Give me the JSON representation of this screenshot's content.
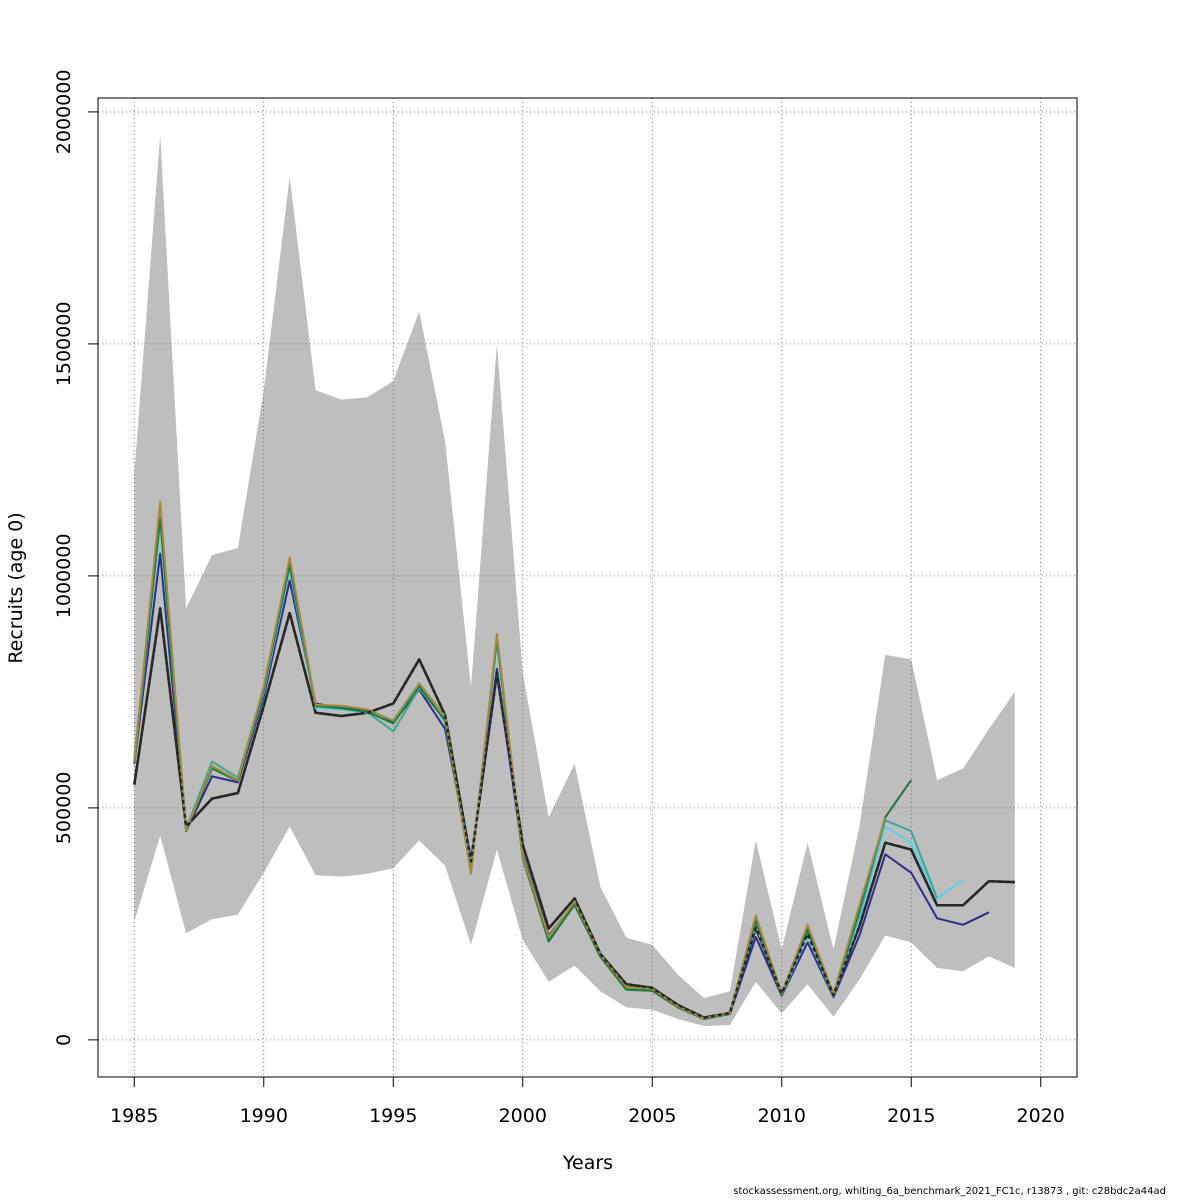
{
  "chart_data": {
    "type": "line",
    "title": "",
    "xlabel": "Years",
    "ylabel": "Recruits (age 0)",
    "xlim": [
      1983.6,
      2021.4
    ],
    "ylim": [
      -80000,
      2030000
    ],
    "x_ticks": [
      1985,
      1990,
      1995,
      2000,
      2005,
      2010,
      2015,
      2020
    ],
    "x_tick_labels": [
      "1985",
      "1990",
      "1995",
      "2000",
      "2005",
      "2010",
      "2015",
      "2020"
    ],
    "y_ticks": [
      0,
      500000,
      1000000,
      1500000,
      2000000
    ],
    "y_tick_labels": [
      "0",
      "500000",
      "1000000",
      "1500000",
      "2000000"
    ],
    "grid": true,
    "confidence_band": {
      "x": [
        1985,
        1986,
        1987,
        1988,
        1989,
        1990,
        1991,
        1992,
        1993,
        1994,
        1995,
        1996,
        1997,
        1998,
        1999,
        2000,
        2001,
        2002,
        2003,
        2004,
        2005,
        2006,
        2007,
        2008,
        2009,
        2010,
        2011,
        2012,
        2013,
        2014,
        2015,
        2016,
        2017,
        2018,
        2019
      ],
      "upper": [
        1220000,
        1950000,
        930000,
        1045000,
        1060000,
        1400000,
        1860000,
        1400000,
        1380000,
        1385000,
        1420000,
        1570000,
        1290000,
        760000,
        1500000,
        790000,
        480000,
        595000,
        330000,
        220000,
        205000,
        140000,
        90000,
        105000,
        430000,
        195000,
        425000,
        195000,
        460000,
        830000,
        820000,
        560000,
        585000,
        670000,
        750000
      ],
      "lower": [
        255000,
        440000,
        230000,
        260000,
        270000,
        360000,
        460000,
        355000,
        352000,
        358000,
        370000,
        430000,
        375000,
        205000,
        410000,
        215000,
        125000,
        160000,
        105000,
        70000,
        65000,
        45000,
        30000,
        32000,
        125000,
        57000,
        120000,
        50000,
        130000,
        225000,
        210000,
        155000,
        148000,
        180000,
        155000
      ]
    },
    "series": [
      {
        "color": "#262626",
        "dashed": true,
        "x": [
          1985,
          1986,
          1987,
          1988,
          1989,
          1990,
          1991,
          1992,
          1993,
          1994,
          1995,
          1996,
          1997,
          1998,
          1999,
          2000,
          2001,
          2002,
          2003,
          2004,
          2005,
          2006,
          2007,
          2008,
          2009,
          2010,
          2011,
          2012,
          2013,
          2014,
          2015,
          2016,
          2017,
          2018,
          2019
        ],
        "values": [
          550000,
          930000,
          460000,
          520000,
          532000,
          720000,
          920000,
          705000,
          698000,
          705000,
          725000,
          820000,
          700000,
          385000,
          790000,
          420000,
          240000,
          305000,
          185000,
          120000,
          112000,
          75000,
          48000,
          58000,
          242000,
          100000,
          228000,
          96000,
          245000,
          425000,
          410000,
          290000,
          290000,
          342000,
          340000
        ]
      },
      {
        "color": "#2c2c8c",
        "dashed": false,
        "x": [
          1985,
          1986,
          1987,
          1988,
          1989,
          1990,
          1991,
          1992,
          1993,
          1994,
          1995,
          1996,
          1997,
          1998,
          1999,
          2000,
          2001,
          2002,
          2003,
          2004,
          2005,
          2006,
          2007,
          2008,
          2009,
          2010,
          2011,
          2012,
          2013,
          2014,
          2015,
          2016,
          2017,
          2018
        ],
        "values": [
          595000,
          1048000,
          450000,
          568000,
          555000,
          740000,
          990000,
          725000,
          715000,
          710000,
          685000,
          755000,
          670000,
          385000,
          800000,
          400000,
          225000,
          295000,
          180000,
          110000,
          106000,
          70000,
          45000,
          56000,
          222000,
          95000,
          210000,
          92000,
          225000,
          400000,
          360000,
          262000,
          248000,
          275000
        ]
      },
      {
        "color": "#5ad2ec",
        "dashed": false,
        "x": [
          1985,
          1986,
          1987,
          1988,
          1989,
          1990,
          1991,
          1992,
          1993,
          1994,
          1995,
          1996,
          1997,
          1998,
          1999,
          2000,
          2001,
          2002,
          2003,
          2004,
          2005,
          2006,
          2007,
          2008,
          2009,
          2010,
          2011,
          2012,
          2013,
          2014,
          2015,
          2016,
          2017
        ],
        "values": [
          600000,
          1110000,
          452000,
          585000,
          560000,
          750000,
          1015000,
          715000,
          712000,
          705000,
          690000,
          770000,
          685000,
          375000,
          855000,
          395000,
          222000,
          298000,
          182000,
          112000,
          108000,
          71000,
          46000,
          57000,
          248000,
          96000,
          225000,
          94000,
          260000,
          460000,
          425000,
          305000,
          345000
        ]
      },
      {
        "color": "#3aaa96",
        "dashed": false,
        "x": [
          1985,
          1986,
          1987,
          1988,
          1989,
          1990,
          1991,
          1992,
          1993,
          1994,
          1995,
          1996,
          1997,
          1998,
          1999,
          2000,
          2001,
          2002,
          2003,
          2004,
          2005,
          2006,
          2007,
          2008,
          2009,
          2010,
          2011,
          2012,
          2013,
          2014,
          2015,
          2016
        ],
        "values": [
          608000,
          1125000,
          455000,
          600000,
          565000,
          760000,
          1020000,
          718000,
          714000,
          706000,
          665000,
          758000,
          690000,
          365000,
          862000,
          390000,
          215000,
          290000,
          180000,
          110000,
          107000,
          70000,
          45000,
          56000,
          255000,
          97000,
          235000,
          96000,
          270000,
          473000,
          450000,
          305000
        ]
      },
      {
        "color": "#1a7a3c",
        "dashed": false,
        "x": [
          1985,
          1986,
          1987,
          1988,
          1989,
          1990,
          1991,
          1992,
          1993,
          1994,
          1995,
          1996,
          1997,
          1998,
          1999,
          2000,
          2001,
          2002,
          2003,
          2004,
          2005,
          2006,
          2007,
          2008,
          2009,
          2010,
          2011,
          2012,
          2013,
          2014,
          2015
        ],
        "values": [
          598000,
          1125000,
          450000,
          585000,
          558000,
          755000,
          1025000,
          720000,
          715000,
          707000,
          682000,
          762000,
          688000,
          362000,
          865000,
          392000,
          212000,
          292000,
          179000,
          108000,
          106000,
          70000,
          45000,
          56000,
          258000,
          96000,
          238000,
          95000,
          280000,
          480000,
          560000
        ]
      },
      {
        "color": "#a68a3a",
        "dashed": false,
        "x": [
          1985,
          1986,
          1987,
          1988,
          1989,
          1990,
          1991,
          1992,
          1993,
          1994,
          1995,
          1996,
          1997,
          1998,
          1999,
          2000,
          2001,
          2002,
          2003,
          2004,
          2005,
          2006,
          2007,
          2008,
          2009,
          2010,
          2011,
          2012,
          2013,
          2014
        ],
        "values": [
          600000,
          1160000,
          452000,
          590000,
          560000,
          762000,
          1040000,
          722000,
          720000,
          712000,
          688000,
          768000,
          698000,
          358000,
          875000,
          395000,
          222000,
          298000,
          184000,
          114000,
          110000,
          72000,
          46000,
          58000,
          268000,
          100000,
          248000,
          100000,
          290000,
          478000
        ]
      }
    ]
  },
  "footer": "stockassessment.org, whiting_6a_benchmark_2021_FC1c, r13873 , git: c28bdc2a44ad"
}
